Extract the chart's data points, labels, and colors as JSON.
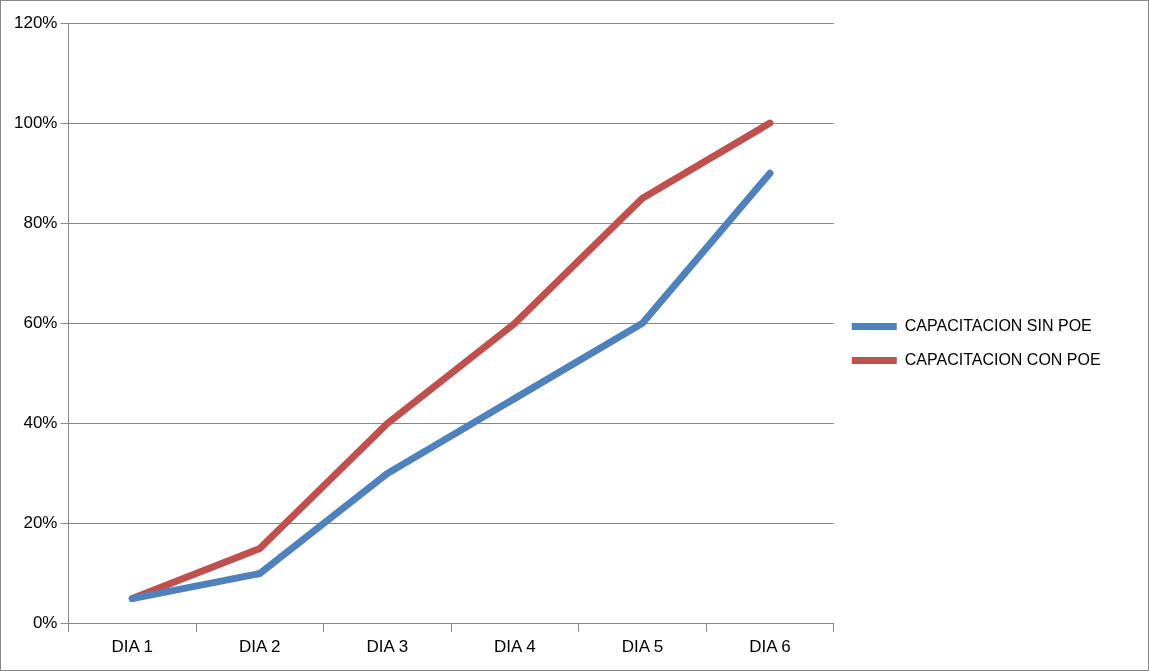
{
  "chart_data": {
    "type": "line",
    "categories": [
      "DIA 1",
      "DIA 2",
      "DIA 3",
      "DIA 4",
      "DIA 5",
      "DIA 6"
    ],
    "series": [
      {
        "name": "CAPACITACION SIN POE",
        "color": "#4f81bd",
        "values": [
          5,
          10,
          30,
          45,
          60,
          90
        ]
      },
      {
        "name": "CAPACITACION CON POE",
        "color": "#c0504d",
        "values": [
          5,
          15,
          40,
          60,
          85,
          100
        ]
      }
    ],
    "ylim": [
      0,
      120
    ],
    "yticks": [
      {
        "value": 0,
        "label": "0%"
      },
      {
        "value": 20,
        "label": "20%"
      },
      {
        "value": 40,
        "label": "40%"
      },
      {
        "value": 60,
        "label": "60%"
      },
      {
        "value": 80,
        "label": "80%"
      },
      {
        "value": 100,
        "label": "100%"
      },
      {
        "value": 120,
        "label": "120%"
      }
    ],
    "grid": "y",
    "legend": "right",
    "marker": "none",
    "line_style": "solid"
  }
}
